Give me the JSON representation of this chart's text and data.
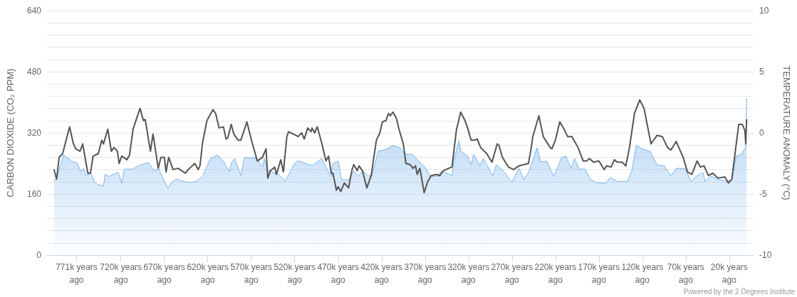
{
  "chart_data": {
    "type": "line",
    "ylabel": "CARBON DIOXIDE (CO₂ PPM)",
    "y2label": "TEMPERATURE ANOMALY (°C)",
    "annotations": [
      "Powered by the 2 Degrees Institute"
    ],
    "xlim": [
      805,
      -8
    ],
    "xticks": [
      {
        "value": 771,
        "label": "771k years ago"
      },
      {
        "value": 720,
        "label": "720k years ago"
      },
      {
        "value": 670,
        "label": "670k years ago"
      },
      {
        "value": 620,
        "label": "620k years ago"
      },
      {
        "value": 570,
        "label": "570k years ago"
      },
      {
        "value": 520,
        "label": "520k years ago"
      },
      {
        "value": 470,
        "label": "470k years ago"
      },
      {
        "value": 420,
        "label": "420k years ago"
      },
      {
        "value": 370,
        "label": "370k years ago"
      },
      {
        "value": 320,
        "label": "320k years ago"
      },
      {
        "value": 270,
        "label": "270k years ago"
      },
      {
        "value": 220,
        "label": "220k years ago"
      },
      {
        "value": 170,
        "label": "170k years ago"
      },
      {
        "value": 120,
        "label": "120k years ago"
      },
      {
        "value": 70,
        "label": "70k years ago"
      },
      {
        "value": 20,
        "label": "20k years ago"
      }
    ],
    "ylim": [
      0,
      640
    ],
    "yticks": [
      0,
      {
        "value": 32,
        "label": null
      },
      {
        "value": 64,
        "label": null
      },
      {
        "value": 96,
        "label": null
      },
      {
        "value": 128,
        "label": null
      },
      160,
      {
        "value": 192,
        "label": null
      },
      {
        "value": 224,
        "label": null
      },
      {
        "value": 256,
        "label": null
      },
      {
        "value": 288,
        "label": null
      },
      320,
      {
        "value": 352,
        "label": null
      },
      {
        "value": 384,
        "label": null
      },
      {
        "value": 416,
        "label": null
      },
      {
        "value": 448,
        "label": null
      },
      480,
      {
        "value": 512,
        "label": null
      },
      {
        "value": 544,
        "label": null
      },
      {
        "value": 576,
        "label": null
      },
      {
        "value": 608,
        "label": null
      },
      640
    ],
    "y2lim": [
      -10,
      10
    ],
    "y2ticks": [
      -10,
      -5,
      0,
      5,
      10
    ],
    "grid": "y",
    "marker": "none",
    "line_style": "solid",
    "series": [
      {
        "type": "area",
        "color": "#7cb5ec",
        "x": [
          797,
          793,
          786,
          776,
          770,
          766,
          763,
          760,
          755,
          750,
          746,
          740,
          738,
          734,
          723,
          719,
          716,
          706,
          700,
          692,
          688,
          682,
          676,
          673,
          666,
          662,
          656,
          649,
          641,
          633,
          626,
          617,
          609,
          602,
          595,
          593,
          589,
          582,
          578,
          565,
          557,
          555,
          551,
          539,
          531,
          520,
          516,
          500,
          489,
          482,
          478,
          476,
          470,
          466,
          458,
          452,
          447,
          442,
          436,
          431,
          424,
          415,
          407,
          399,
          393,
          385,
          377,
          369,
          364,
          356,
          351,
          339,
          337,
          331,
          329,
          321,
          317,
          314,
          307,
          303,
          292,
          288,
          280,
          270,
          262,
          258,
          256,
          251,
          241,
          237,
          230,
          222,
          213,
          208,
          202,
          198,
          193,
          186,
          179,
          173,
          162,
          157,
          149,
          137,
          132,
          127,
          119,
          111,
          103,
          95,
          87,
          81,
          71,
          64,
          57,
          50,
          48,
          41,
          30,
          22,
          17,
          12,
          6,
          1,
          0
        ],
        "values": [
          193,
          206,
          262,
          246,
          240,
          218,
          227,
          208,
          216,
          190,
          184,
          181,
          212,
          206,
          216,
          188,
          225,
          225,
          234,
          240,
          242,
          221,
          225,
          208,
          175,
          190,
          199,
          193,
          190,
          193,
          206,
          253,
          262,
          246,
          218,
          240,
          253,
          208,
          255,
          255,
          231,
          253,
          221,
          212,
          193,
          240,
          247,
          234,
          253,
          221,
          206,
          240,
          246,
          197,
          197,
          221,
          206,
          221,
          208,
          208,
          272,
          277,
          287,
          281,
          264,
          264,
          246,
          227,
          206,
          206,
          221,
          208,
          246,
          300,
          273,
          259,
          236,
          264,
          234,
          253,
          208,
          236,
          221,
          190,
          227,
          208,
          197,
          216,
          281,
          244,
          246,
          206,
          255,
          259,
          227,
          253,
          225,
          225,
          197,
          190,
          188,
          203,
          193,
          193,
          221,
          287,
          277,
          272,
          236,
          234,
          208,
          227,
          227,
          193,
          208,
          216,
          193,
          206,
          197,
          193,
          197,
          259,
          264,
          283,
          411
        ]
      },
      {
        "axis": "y2",
        "color": "#555555",
        "x": [
          797,
          794,
          791,
          787,
          779,
          775,
          772,
          767,
          764,
          758,
          755,
          752,
          746,
          742,
          740,
          735,
          731,
          728,
          724,
          722,
          719,
          713,
          710,
          706,
          698,
          694,
          692,
          686,
          683,
          677,
          674,
          670,
          668,
          665,
          660,
          654,
          646,
          641,
          635,
          631,
          629,
          626,
          621,
          614,
          611,
          607,
          602,
          599,
          597,
          593,
          590,
          585,
          582,
          575,
          569,
          563,
          557,
          553,
          551,
          548,
          543,
          541,
          536,
          533,
          529,
          527,
          516,
          512,
          509,
          505,
          501,
          500,
          497,
          494,
          489,
          484,
          481,
          478,
          476,
          472,
          470,
          467,
          463,
          458,
          454,
          452,
          448,
          446,
          442,
          437,
          432,
          426,
          422,
          419,
          415,
          412,
          410,
          407,
          403,
          400,
          395,
          392,
          387,
          384,
          381,
          379,
          376,
          371,
          367,
          363,
          357,
          353,
          349,
          343,
          339,
          334,
          329,
          324,
          321,
          317,
          313,
          310,
          306,
          299,
          293,
          287,
          285,
          281,
          274,
          268,
          262,
          251,
          248,
          246,
          239,
          234,
          226,
          224,
          220,
          215,
          210,
          206,
          201,
          194,
          188,
          184,
          181,
          176,
          170,
          164,
          161,
          156,
          152,
          149,
          143,
          139,
          135,
          129,
          123,
          118,
          110,
          103,
          97,
          91,
          87,
          81,
          73,
          68,
          63,
          57,
          53,
          49,
          44,
          39,
          33,
          25,
          21,
          17,
          13,
          9,
          5,
          2,
          1,
          0
        ],
        "values": [
          -3.0,
          -3.8,
          -2.0,
          -1.7,
          0.5,
          -0.8,
          -1.3,
          -1.5,
          -0.9,
          -3.3,
          -3.3,
          -1.9,
          -1.7,
          -0.6,
          -0.9,
          0.3,
          -1.5,
          -1.2,
          -1.5,
          -2.5,
          -1.9,
          -2.2,
          -1.8,
          0.3,
          2.0,
          1.0,
          1.1,
          -1.5,
          -0.1,
          -2.9,
          -2.0,
          -2.0,
          -3.2,
          -2.0,
          -3.0,
          -2.9,
          -3.3,
          -2.9,
          -2.5,
          -3.0,
          -2.7,
          -0.8,
          1.0,
          1.9,
          1.6,
          0.4,
          0.5,
          -0.5,
          -0.4,
          0.7,
          -0.1,
          -0.6,
          -0.6,
          0.9,
          -0.8,
          -2.3,
          -2.0,
          -1.3,
          -3.7,
          -3.1,
          -2.8,
          -3.4,
          -2.2,
          -3.2,
          -0.3,
          0.1,
          -0.3,
          0.0,
          -0.5,
          0.4,
          0.1,
          0.4,
          0.0,
          0.5,
          -0.8,
          -2.3,
          -1.9,
          -3.3,
          -3.3,
          -4.7,
          -4.4,
          -4.8,
          -4.1,
          -4.5,
          -3.0,
          -2.6,
          -3.1,
          -2.7,
          -3.1,
          -4.5,
          -3.5,
          -0.6,
          0.0,
          0.9,
          1.0,
          1.6,
          1.4,
          1.7,
          1.2,
          0.3,
          -0.9,
          -2.5,
          -2.6,
          -2.9,
          -2.7,
          -3.4,
          -2.9,
          -4.9,
          -4.0,
          -3.5,
          -3.4,
          -3.5,
          -3.1,
          -2.9,
          -2.8,
          0.2,
          1.7,
          1.0,
          0.4,
          -0.6,
          -0.6,
          -0.5,
          -1.2,
          -1.7,
          -2.4,
          -0.9,
          -1.0,
          -2.0,
          -2.8,
          -3.0,
          -2.7,
          -2.5,
          -1.3,
          -0.3,
          1.4,
          -0.3,
          -1.2,
          -1.3,
          -0.6,
          0.9,
          0.3,
          -0.3,
          -0.3,
          -1.2,
          -2.3,
          -2.3,
          -2.1,
          -2.4,
          -2.3,
          -3.0,
          -2.7,
          -2.8,
          -2.2,
          -2.4,
          -2.4,
          -2.7,
          -1.3,
          1.6,
          2.7,
          2.0,
          -0.9,
          -0.2,
          -0.3,
          -1.2,
          -1.4,
          -0.7,
          -2.0,
          -3.2,
          -3.4,
          -2.3,
          -2.8,
          -2.7,
          -3.5,
          -3.3,
          -3.7,
          -3.6,
          -4.1,
          -3.8,
          -1.5,
          0.7,
          0.7,
          0.2,
          -0.9,
          1.1
        ]
      }
    ]
  }
}
